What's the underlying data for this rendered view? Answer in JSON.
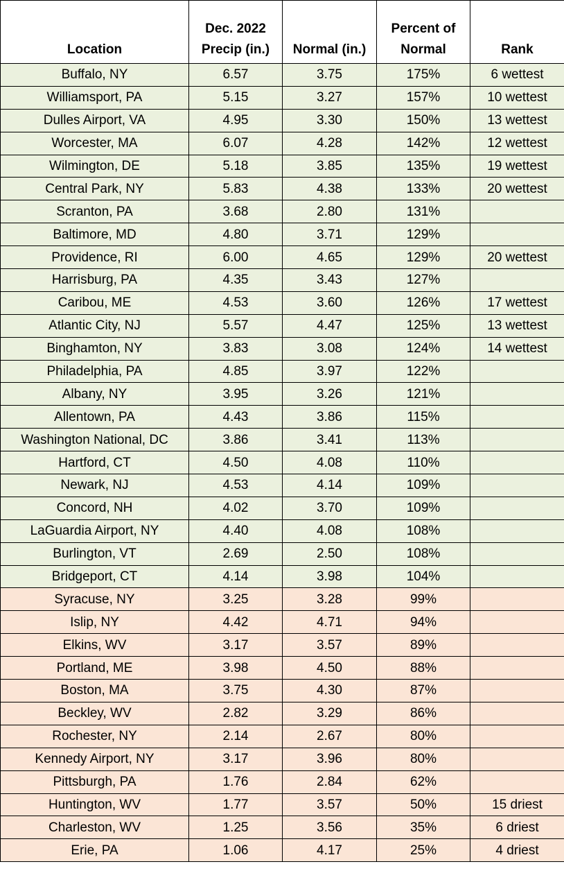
{
  "table": {
    "header": [
      [
        "Location"
      ],
      [
        "Dec. 2022",
        "Precip (in.)"
      ],
      [
        "Normal (in.)"
      ],
      [
        "Percent of",
        "Normal"
      ],
      [
        "Rank"
      ]
    ],
    "groups": [
      {
        "color": "#ebf1de",
        "rows": [
          [
            "Buffalo, NY",
            "6.57",
            "3.75",
            "175%",
            "6 wettest"
          ],
          [
            "Williamsport, PA",
            "5.15",
            "3.27",
            "157%",
            "10 wettest"
          ],
          [
            "Dulles Airport, VA",
            "4.95",
            "3.30",
            "150%",
            "13 wettest"
          ],
          [
            "Worcester, MA",
            "6.07",
            "4.28",
            "142%",
            "12 wettest"
          ],
          [
            "Wilmington, DE",
            "5.18",
            "3.85",
            "135%",
            "19 wettest"
          ],
          [
            "Central Park, NY",
            "5.83",
            "4.38",
            "133%",
            "20 wettest"
          ],
          [
            "Scranton, PA",
            "3.68",
            "2.80",
            "131%",
            null
          ],
          [
            "Baltimore, MD",
            "4.80",
            "3.71",
            "129%",
            null
          ],
          [
            "Providence, RI",
            "6.00",
            "4.65",
            "129%",
            "20 wettest"
          ],
          [
            "Harrisburg, PA",
            "4.35",
            "3.43",
            "127%",
            null
          ],
          [
            "Caribou, ME",
            "4.53",
            "3.60",
            "126%",
            "17 wettest"
          ],
          [
            "Atlantic City, NJ",
            "5.57",
            "4.47",
            "125%",
            "13 wettest"
          ],
          [
            "Binghamton, NY",
            "3.83",
            "3.08",
            "124%",
            "14 wettest"
          ],
          [
            "Philadelphia, PA",
            "4.85",
            "3.97",
            "122%",
            null
          ],
          [
            "Albany, NY",
            "3.95",
            "3.26",
            "121%",
            null
          ],
          [
            "Allentown, PA",
            "4.43",
            "3.86",
            "115%",
            null
          ],
          [
            "Washington National, DC",
            "3.86",
            "3.41",
            "113%",
            null
          ],
          [
            "Hartford, CT",
            "4.50",
            "4.08",
            "110%",
            null
          ],
          [
            "Newark, NJ",
            "4.53",
            "4.14",
            "109%",
            null
          ],
          [
            "Concord, NH",
            "4.02",
            "3.70",
            "109%",
            null
          ],
          [
            "LaGuardia Airport, NY",
            "4.40",
            "4.08",
            "108%",
            null
          ],
          [
            "Burlington, VT",
            "2.69",
            "2.50",
            "108%",
            null
          ],
          [
            "Bridgeport, CT",
            "4.14",
            "3.98",
            "104%",
            null
          ]
        ]
      },
      {
        "color": "#fbe5d6",
        "rows": [
          [
            "Syracuse, NY",
            "3.25",
            "3.28",
            "99%",
            null
          ],
          [
            "Islip, NY",
            "4.42",
            "4.71",
            "94%",
            null
          ],
          [
            "Elkins, WV",
            "3.17",
            "3.57",
            "89%",
            null
          ],
          [
            "Portland, ME",
            "3.98",
            "4.50",
            "88%",
            null
          ],
          [
            "Boston, MA",
            "3.75",
            "4.30",
            "87%",
            null
          ],
          [
            "Beckley, WV",
            "2.82",
            "3.29",
            "86%",
            null
          ],
          [
            "Rochester, NY",
            "2.14",
            "2.67",
            "80%",
            null
          ],
          [
            "Kennedy Airport, NY",
            "3.17",
            "3.96",
            "80%",
            null
          ],
          [
            "Pittsburgh, PA",
            "1.76",
            "2.84",
            "62%",
            null
          ],
          [
            "Huntington, WV",
            "1.77",
            "3.57",
            "50%",
            "15 driest"
          ],
          [
            "Charleston, WV",
            "1.25",
            "3.56",
            "35%",
            "6 driest"
          ],
          [
            "Erie, PA",
            "1.06",
            "4.17",
            "25%",
            "4 driest"
          ]
        ]
      }
    ]
  }
}
